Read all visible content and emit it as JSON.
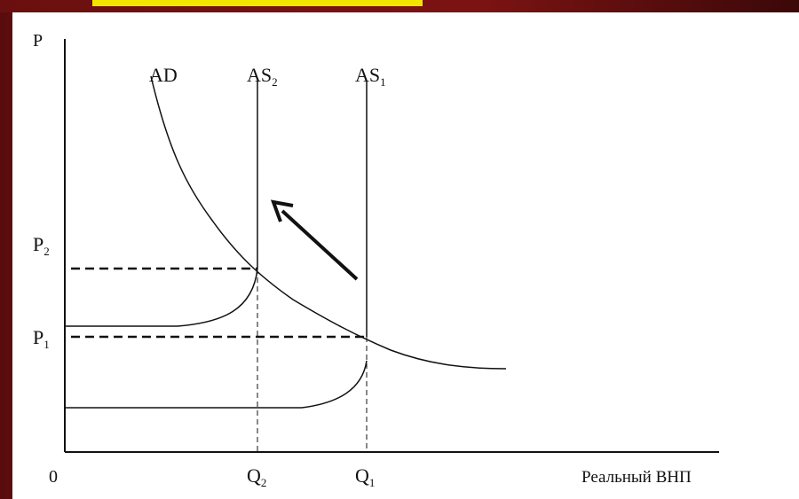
{
  "labels": {
    "axis_y": "P",
    "axis_x": "Реальный ВНП",
    "origin": "0",
    "ad": "AD",
    "as2_main": "AS",
    "as2_sub": "2",
    "as1_main": "AS",
    "as1_sub": "1",
    "p2_main": "P",
    "p2_sub": "2",
    "p1_main": "P",
    "p1_sub": "1",
    "q2_main": "Q",
    "q2_sub": "2",
    "q1_main": "Q",
    "q1_sub": "1"
  },
  "colors": {
    "frame": "#6b0e0e",
    "title_strip": "#f2e600",
    "lines": "#111111"
  }
}
